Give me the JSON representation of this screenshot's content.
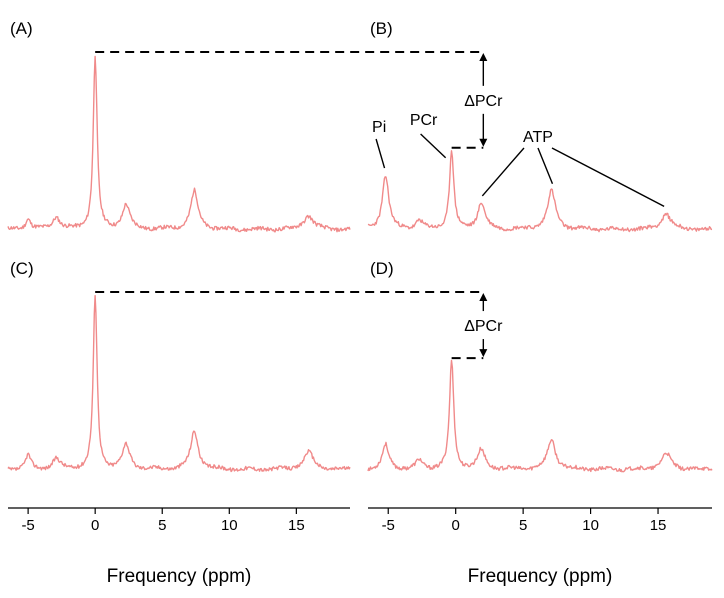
{
  "colors": {
    "spectrum": "#f08a8a",
    "annotation": "#000000"
  },
  "chart_data": [
    {
      "type": "line",
      "panel_label": "(A)",
      "row": 0,
      "col": 0,
      "xlim": [
        -6.5,
        19
      ],
      "ylabel": "",
      "baseline_noise_seed": 11,
      "peaks": [
        {
          "center": -5.0,
          "height": 0.06,
          "width": 0.25
        },
        {
          "center": -2.9,
          "height": 0.07,
          "width": 0.35
        },
        {
          "center": 0.0,
          "height": 1.0,
          "width": 0.18
        },
        {
          "center": 2.3,
          "height": 0.14,
          "width": 0.35
        },
        {
          "center": 7.4,
          "height": 0.22,
          "width": 0.35
        },
        {
          "center": 15.9,
          "height": 0.08,
          "width": 0.45
        }
      ],
      "annotation": null
    },
    {
      "type": "line",
      "panel_label": "(B)",
      "row": 0,
      "col": 1,
      "xlim": [
        -6.5,
        19
      ],
      "ylabel": "",
      "baseline_noise_seed": 23,
      "peaks": [
        {
          "center": -5.2,
          "height": 0.31,
          "width": 0.3
        },
        {
          "center": -2.7,
          "height": 0.05,
          "width": 0.3
        },
        {
          "center": -0.3,
          "height": 0.45,
          "width": 0.2
        },
        {
          "center": 1.9,
          "height": 0.15,
          "width": 0.35
        },
        {
          "center": 7.1,
          "height": 0.22,
          "width": 0.38
        },
        {
          "center": 15.6,
          "height": 0.09,
          "width": 0.45
        }
      ],
      "annotation": {
        "text": "ΔPCr",
        "ref_peak": 2,
        "ref_height_of_A": 1.0
      },
      "peak_labels": [
        "Pi",
        "PCr",
        "ATP"
      ]
    },
    {
      "type": "line",
      "panel_label": "(C)",
      "row": 1,
      "col": 0,
      "xlim": [
        -6.5,
        19
      ],
      "ylabel": "",
      "baseline_noise_seed": 37,
      "peaks": [
        {
          "center": -5.0,
          "height": 0.08,
          "width": 0.25
        },
        {
          "center": -2.9,
          "height": 0.06,
          "width": 0.35
        },
        {
          "center": 0.0,
          "height": 1.0,
          "width": 0.18
        },
        {
          "center": 2.3,
          "height": 0.14,
          "width": 0.35
        },
        {
          "center": 7.4,
          "height": 0.22,
          "width": 0.35
        },
        {
          "center": 15.9,
          "height": 0.1,
          "width": 0.45
        }
      ],
      "annotation": null
    },
    {
      "type": "line",
      "panel_label": "(D)",
      "row": 1,
      "col": 1,
      "xlim": [
        -6.5,
        19
      ],
      "ylabel": "",
      "baseline_noise_seed": 53,
      "peaks": [
        {
          "center": -5.2,
          "height": 0.14,
          "width": 0.3
        },
        {
          "center": -2.7,
          "height": 0.05,
          "width": 0.3
        },
        {
          "center": -0.3,
          "height": 0.62,
          "width": 0.2
        },
        {
          "center": 1.9,
          "height": 0.11,
          "width": 0.35
        },
        {
          "center": 7.1,
          "height": 0.17,
          "width": 0.38
        },
        {
          "center": 15.6,
          "height": 0.09,
          "width": 0.45
        }
      ],
      "annotation": {
        "text": "ΔPCr",
        "ref_peak": 2,
        "ref_height_of_A": 1.0
      }
    }
  ],
  "axis": {
    "ticks": [
      -5,
      0,
      5,
      10,
      15
    ],
    "tick_labels": [
      "-5",
      "0",
      "5",
      "10",
      "15"
    ],
    "title": "Frequency (ppm)"
  }
}
